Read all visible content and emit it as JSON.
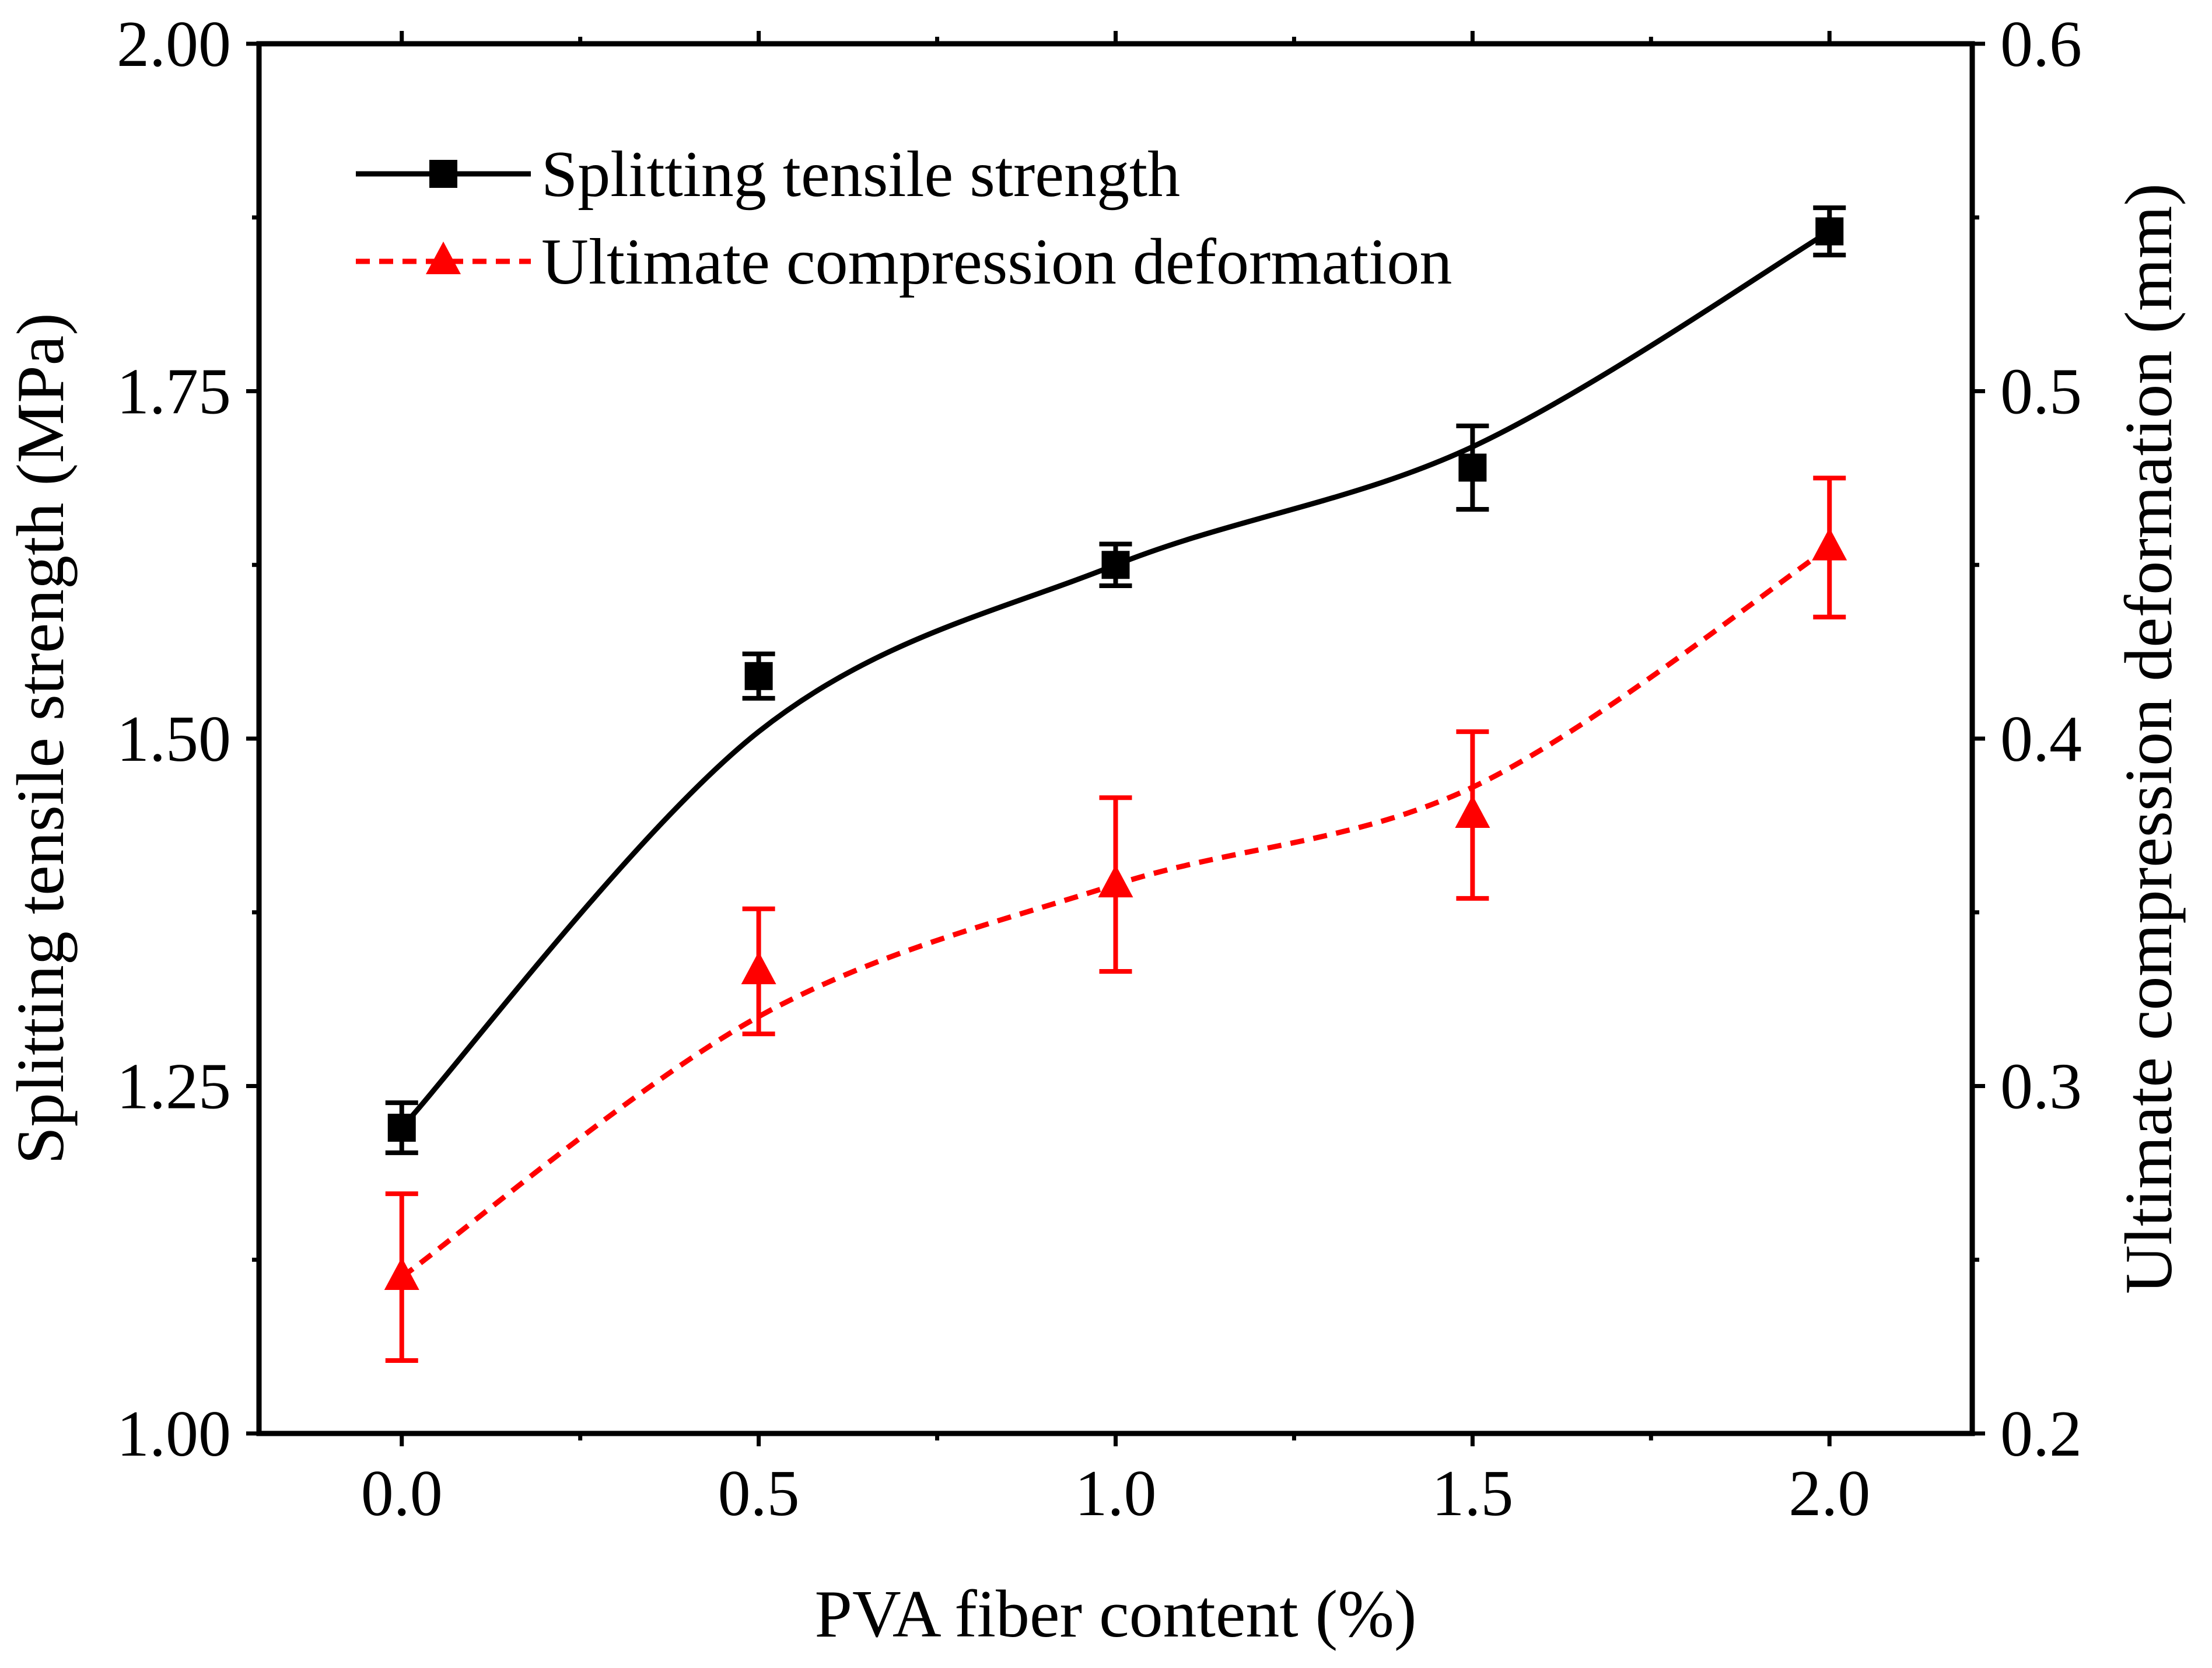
{
  "chart_data": {
    "type": "line",
    "title": "",
    "x": [
      0.0,
      0.5,
      1.0,
      1.5,
      2.0
    ],
    "xlabel": "PVA fiber content (%)",
    "xlim": [
      -0.2,
      2.2
    ],
    "xticks": [
      0.0,
      0.5,
      1.0,
      1.5,
      2.0
    ],
    "xtick_labels": [
      "0.0",
      "0.5",
      "1.0",
      "1.5",
      "2.0"
    ],
    "ylabel": "Splitting tensile strength (MPa)",
    "ylim": [
      1.0,
      2.0
    ],
    "yticks": [
      1.0,
      1.25,
      1.5,
      1.75,
      2.0
    ],
    "ytick_labels": [
      "1.00",
      "1.25",
      "1.50",
      "1.75",
      "2.00"
    ],
    "y2label": "Ultimate compression deformation (mm)",
    "y2lim": [
      0.2,
      0.6
    ],
    "y2ticks": [
      0.2,
      0.3,
      0.4,
      0.5,
      0.6
    ],
    "y2tick_labels": [
      "0.2",
      "0.3",
      "0.4",
      "0.5",
      "0.6"
    ],
    "grid": false,
    "legend_position": "top-left",
    "series": [
      {
        "name": "Splitting tensile strength",
        "axis": "left",
        "color": "#000000",
        "marker": "square",
        "line_style": "solid",
        "values": [
          1.22,
          1.545,
          1.625,
          1.695,
          1.865
        ],
        "errors": [
          0.018,
          0.016,
          0.015,
          0.03,
          0.017
        ],
        "fit_values": [
          1.22,
          1.505,
          1.625,
          1.71,
          1.865
        ]
      },
      {
        "name": "Ultimate compression deformation",
        "axis": "right",
        "color": "#ff0000",
        "marker": "triangle",
        "line_style": "dashed",
        "values": [
          0.245,
          0.333,
          0.358,
          0.378,
          0.455
        ],
        "errors": [
          0.024,
          0.018,
          0.025,
          0.024,
          0.02
        ],
        "fit_values": [
          0.245,
          0.32,
          0.358,
          0.386,
          0.455
        ]
      }
    ]
  }
}
